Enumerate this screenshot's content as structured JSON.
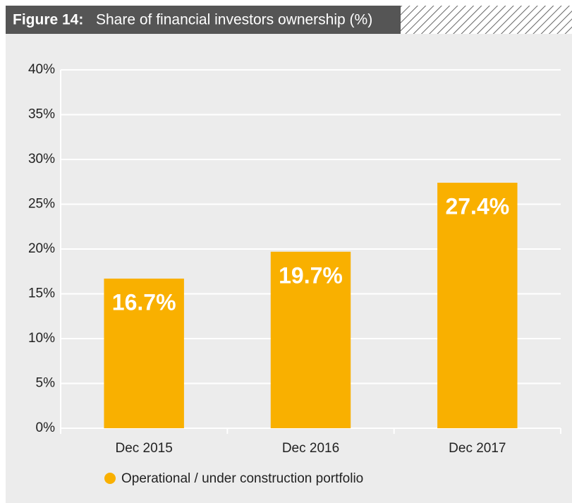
{
  "chart_data": {
    "type": "bar",
    "figure": "Figure 14:",
    "title": "Share of financial investors ownership (%)",
    "categories": [
      "Dec 2015",
      "Dec 2016",
      "Dec 2017"
    ],
    "series": [
      {
        "name": "Operational / under construction portfolio",
        "color": "#f9b000",
        "values": [
          16.7,
          19.7,
          27.4
        ],
        "value_labels": [
          "16.7%",
          "19.7%",
          "27.4%"
        ]
      }
    ],
    "ylim": [
      0,
      40
    ],
    "yticks": [
      {
        "value": 0,
        "label": "0%"
      },
      {
        "value": 5,
        "label": "5%"
      },
      {
        "value": 10,
        "label": "10%"
      },
      {
        "value": 15,
        "label": "15%"
      },
      {
        "value": 20,
        "label": "20%"
      },
      {
        "value": 25,
        "label": "25%"
      },
      {
        "value": 30,
        "label": "30%"
      },
      {
        "value": 35,
        "label": "35%"
      },
      {
        "value": 40,
        "label": "40%"
      }
    ],
    "grid": true
  }
}
